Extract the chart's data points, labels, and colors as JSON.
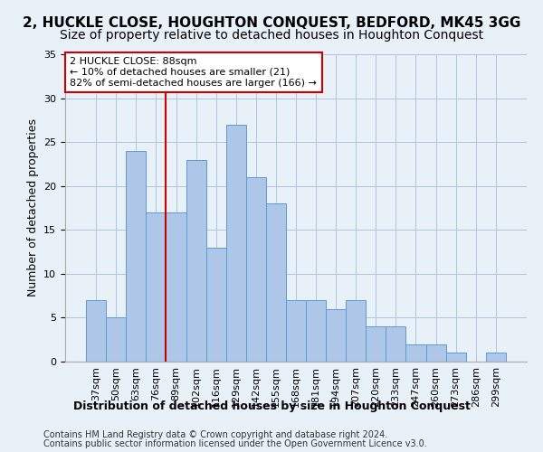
{
  "title1": "2, HUCKLE CLOSE, HOUGHTON CONQUEST, BEDFORD, MK45 3GG",
  "title2": "Size of property relative to detached houses in Houghton Conquest",
  "xlabel": "Distribution of detached houses by size in Houghton Conquest",
  "ylabel": "Number of detached properties",
  "categories": [
    "37sqm",
    "50sqm",
    "63sqm",
    "76sqm",
    "89sqm",
    "102sqm",
    "116sqm",
    "129sqm",
    "142sqm",
    "155sqm",
    "168sqm",
    "181sqm",
    "194sqm",
    "207sqm",
    "220sqm",
    "233sqm",
    "247sqm",
    "260sqm",
    "273sqm",
    "286sqm",
    "299sqm"
  ],
  "values": [
    7,
    5,
    24,
    17,
    17,
    23,
    13,
    27,
    21,
    18,
    7,
    7,
    6,
    7,
    4,
    4,
    2,
    2,
    1,
    0,
    1
  ],
  "bar_color": "#aec6e8",
  "bar_edge_color": "#5b9bd5",
  "annotation_text_line1": "2 HUCKLE CLOSE: 88sqm",
  "annotation_text_line2": "← 10% of detached houses are smaller (21)",
  "annotation_text_line3": "82% of semi-detached houses are larger (166) →",
  "annotation_box_color": "#ffffff",
  "annotation_box_edge": "#cc0000",
  "annotation_line_color": "#cc0000",
  "annotation_line_index": 4,
  "footer1": "Contains HM Land Registry data © Crown copyright and database right 2024.",
  "footer2": "Contains public sector information licensed under the Open Government Licence v3.0.",
  "ylim": [
    0,
    35
  ],
  "yticks": [
    0,
    5,
    10,
    15,
    20,
    25,
    30,
    35
  ],
  "bg_color": "#e8f0f8",
  "plot_bg_color": "#e8f0f8",
  "grid_color": "#b0c4de",
  "title1_fontsize": 11,
  "title2_fontsize": 10,
  "xlabel_fontsize": 9,
  "ylabel_fontsize": 9,
  "tick_fontsize": 8,
  "annotation_fontsize": 8,
  "footer_fontsize": 7
}
